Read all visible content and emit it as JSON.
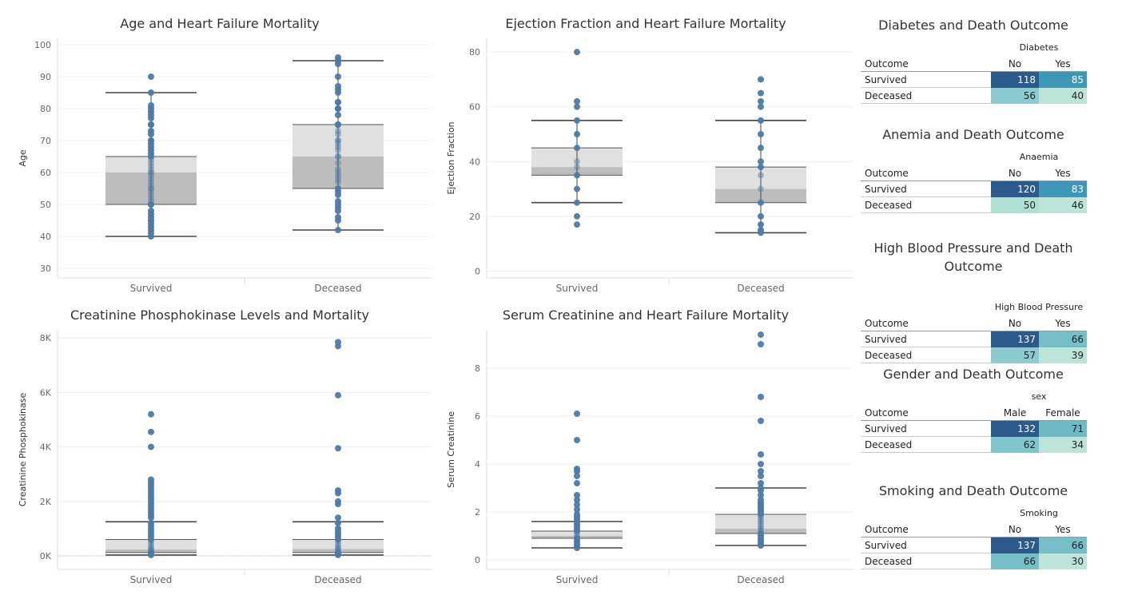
{
  "chart_data": [
    {
      "id": "age",
      "type": "box",
      "title": "Age and Heart Failure Mortality",
      "ylabel": "Age",
      "yticks": [
        30,
        40,
        50,
        60,
        70,
        80,
        90,
        100
      ],
      "yticklabels": [
        "30",
        "40",
        "50",
        "60",
        "70",
        "80",
        "90",
        "100"
      ],
      "ylim": [
        27,
        102
      ],
      "categories": [
        "Survived",
        "Deceased"
      ],
      "boxes": [
        {
          "whisker_low": 40,
          "q1": 50,
          "median": 60,
          "q3": 65,
          "whisker_high": 85,
          "points": [
            40,
            41,
            42,
            43,
            44,
            45,
            45,
            46,
            47,
            48,
            50,
            50,
            51,
            52,
            53,
            54,
            55,
            55,
            56,
            57,
            58,
            59,
            60,
            60,
            61,
            62,
            63,
            64,
            65,
            65,
            66,
            67,
            68,
            69,
            70,
            70,
            72,
            73,
            75,
            75,
            77,
            78,
            79,
            80,
            81,
            85,
            90
          ]
        },
        {
          "whisker_low": 42,
          "q1": 55,
          "median": 65,
          "q3": 75,
          "whisker_high": 95,
          "points": [
            42,
            45,
            46,
            48,
            49,
            50,
            51,
            53,
            54,
            55,
            57,
            58,
            59,
            60,
            61,
            63,
            65,
            65,
            67,
            68,
            69,
            70,
            70,
            72,
            73,
            75,
            75,
            78,
            80,
            80,
            82,
            82,
            85,
            86,
            87,
            90,
            94,
            95,
            95,
            96
          ]
        }
      ]
    },
    {
      "id": "ef",
      "type": "box",
      "title": "Ejection Fraction and Heart Failure Mortality",
      "ylabel": "Ejection Fraction",
      "yticks": [
        0,
        20,
        40,
        60,
        80
      ],
      "yticklabels": [
        "0",
        "20",
        "40",
        "60",
        "80"
      ],
      "ylim": [
        -2.5,
        85
      ],
      "categories": [
        "Survived",
        "Deceased"
      ],
      "boxes": [
        {
          "whisker_low": 25,
          "q1": 35,
          "median": 38,
          "q3": 45,
          "whisker_high": 55,
          "points": [
            17,
            20,
            25,
            30,
            35,
            38,
            40,
            45,
            50,
            55,
            60,
            62,
            80
          ]
        },
        {
          "whisker_low": 14,
          "q1": 25,
          "median": 30,
          "q3": 38,
          "whisker_high": 55,
          "points": [
            14,
            15,
            17,
            20,
            25,
            30,
            35,
            38,
            40,
            45,
            50,
            55,
            60,
            62,
            65,
            70
          ]
        }
      ]
    },
    {
      "id": "cpk",
      "type": "box",
      "title": "Creatinine Phosphokinase Levels and Mortality",
      "ylabel": "Creatinine Phosphokinase",
      "yticks": [
        0,
        2000,
        4000,
        6000,
        8000
      ],
      "yticklabels": [
        "0K",
        "2K",
        "4K",
        "6K",
        "8K"
      ],
      "ylim": [
        -500,
        8300
      ],
      "categories": [
        "Survived",
        "Deceased"
      ],
      "boxes": [
        {
          "whisker_low": 30,
          "q1": 120,
          "median": 240,
          "q3": 600,
          "whisker_high": 1250,
          "points": [
            30,
            60,
            80,
            100,
            120,
            150,
            200,
            250,
            300,
            400,
            500,
            600,
            700,
            800,
            900,
            1000,
            1100,
            1200,
            1400,
            1500,
            1600,
            1700,
            1800,
            1900,
            2000,
            2100,
            2200,
            2300,
            2400,
            2500,
            2600,
            2700,
            2800,
            4000,
            4550,
            5200
          ]
        },
        {
          "whisker_low": 30,
          "q1": 120,
          "median": 250,
          "q3": 600,
          "whisker_high": 1250,
          "points": [
            30,
            60,
            100,
            150,
            200,
            250,
            300,
            400,
            500,
            600,
            700,
            800,
            900,
            1000,
            1200,
            1400,
            1900,
            2000,
            2300,
            2400,
            3950,
            5900,
            7700,
            7850
          ]
        }
      ]
    },
    {
      "id": "sc",
      "type": "box",
      "title": "Serum Creatinine  and Heart Failure Mortality",
      "ylabel": "Serum Creatinine",
      "yticks": [
        0,
        2,
        4,
        6,
        8
      ],
      "yticklabels": [
        "0",
        "2",
        "4",
        "6",
        "8"
      ],
      "ylim": [
        -0.4,
        9.6
      ],
      "categories": [
        "Survived",
        "Deceased"
      ],
      "boxes": [
        {
          "whisker_low": 0.5,
          "q1": 0.9,
          "median": 1.0,
          "q3": 1.2,
          "whisker_high": 1.6,
          "points": [
            0.5,
            0.6,
            0.7,
            0.8,
            0.9,
            1.0,
            1.1,
            1.2,
            1.3,
            1.4,
            1.5,
            1.6,
            1.7,
            1.8,
            1.9,
            2.1,
            2.3,
            2.5,
            2.7,
            3.2,
            3.5,
            3.7,
            3.8,
            5.0,
            6.1
          ]
        },
        {
          "whisker_low": 0.6,
          "q1": 1.1,
          "median": 1.3,
          "q3": 1.9,
          "whisker_high": 3.0,
          "points": [
            0.6,
            0.7,
            0.8,
            0.9,
            1.0,
            1.1,
            1.2,
            1.3,
            1.4,
            1.5,
            1.6,
            1.7,
            1.8,
            1.9,
            2.0,
            2.1,
            2.2,
            2.3,
            2.4,
            2.5,
            2.7,
            2.9,
            3.0,
            3.2,
            3.5,
            3.7,
            4.0,
            4.4,
            5.8,
            6.8,
            9.0,
            9.4
          ]
        }
      ]
    }
  ],
  "tables": [
    {
      "title": "Diabetes and Death Outcome",
      "dimension": "Diabetes",
      "row_header": "Outcome",
      "columns": [
        "No",
        "Yes"
      ],
      "rows": [
        {
          "label": "Survived",
          "values": [
            "118",
            "85"
          ],
          "colors": [
            "#2c5a8c",
            "#3f97b8"
          ]
        },
        {
          "label": "Deceased",
          "values": [
            "56",
            "40"
          ],
          "colors": [
            "#8ccbd1",
            "#bde4d9"
          ]
        }
      ]
    },
    {
      "title": "Anemia and Death Outcome",
      "dimension": "Anaemia",
      "row_header": "Outcome",
      "columns": [
        "No",
        "Yes"
      ],
      "rows": [
        {
          "label": "Survived",
          "values": [
            "120",
            "83"
          ],
          "colors": [
            "#2c5a8c",
            "#3f97b8"
          ]
        },
        {
          "label": "Deceased",
          "values": [
            "50",
            "46"
          ],
          "colors": [
            "#b0dfd6",
            "#bde4d9"
          ]
        }
      ]
    },
    {
      "title": "High Blood Pressure and Death Outcome",
      "dimension": "High Blood Pressure",
      "row_header": "Outcome",
      "columns": [
        "No",
        "Yes"
      ],
      "rows": [
        {
          "label": "Survived",
          "values": [
            "137",
            "66"
          ],
          "colors": [
            "#2c5a8c",
            "#76bfc9"
          ]
        },
        {
          "label": "Deceased",
          "values": [
            "57",
            "39"
          ],
          "colors": [
            "#8ccbd1",
            "#bde4d9"
          ]
        }
      ]
    },
    {
      "title": "Gender and Death Outcome",
      "dimension": "sex",
      "row_header": "Outcome",
      "columns": [
        "Male",
        "Female"
      ],
      "rows": [
        {
          "label": "Survived",
          "values": [
            "132",
            "71"
          ],
          "colors": [
            "#2c5a8c",
            "#6db9c6"
          ]
        },
        {
          "label": "Deceased",
          "values": [
            "62",
            "34"
          ],
          "colors": [
            "#7fc5ce",
            "#bde4d9"
          ]
        }
      ]
    },
    {
      "title": "Smoking and Death Outcome",
      "dimension": "Smoking",
      "row_header": "Outcome",
      "columns": [
        "No",
        "Yes"
      ],
      "rows": [
        {
          "label": "Survived",
          "values": [
            "137",
            "66"
          ],
          "colors": [
            "#2c5a8c",
            "#76bfc9"
          ]
        },
        {
          "label": "Deceased",
          "values": [
            "66",
            "30"
          ],
          "colors": [
            "#76bfc9",
            "#bde4d9"
          ]
        }
      ]
    }
  ],
  "colors": {
    "point": "#4e79a7",
    "box_upper": "#e0e0e0",
    "box_lower": "#bdbdbd",
    "whisker": "#444444",
    "grid": "#eeeeee"
  }
}
